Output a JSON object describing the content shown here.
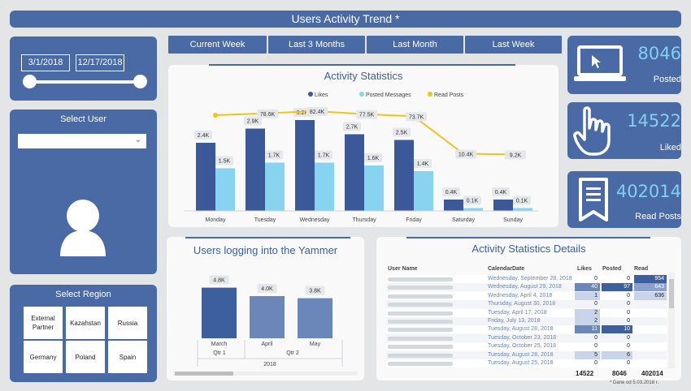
{
  "title": "Users Activity Trend *",
  "date_filter": {
    "start": "3/1/2018",
    "end": "12/17/2018"
  },
  "select_user": {
    "title": "Select User",
    "value": ""
  },
  "select_region": {
    "title": "Select Region",
    "options": [
      "External Partner",
      "Kazahstan",
      "Russia",
      "Germany",
      "Poland",
      "Spain"
    ]
  },
  "period_buttons": [
    "Current Week",
    "Last 3 Months",
    "Last Month",
    "Last Week"
  ],
  "kpis": [
    {
      "value": "8046",
      "label": "Posted",
      "icon": "laptop-icon"
    },
    {
      "value": "14522",
      "label": "Liked",
      "icon": "hand-pointer-icon"
    },
    {
      "value": "402014",
      "label": "Read Posts",
      "icon": "document-icon"
    }
  ],
  "colors": {
    "panel": "#4a6aa5",
    "likes": "#3b5998",
    "posted": "#87d3f0",
    "read": "#f2c31b",
    "kpi_number": "#7fd0f4"
  },
  "chart_data": [
    {
      "type": "bar",
      "title": "Activity Statistics",
      "categories": [
        "Monday",
        "Tuesday",
        "Wednesday",
        "Thursday",
        "Friday",
        "Saturday",
        "Sunday"
      ],
      "series": [
        {
          "name": "Likes",
          "type": "bar",
          "values": [
            2.4,
            2.9,
            3.2,
            2.7,
            2.5,
            0.4,
            0.4
          ],
          "labels": [
            "2.4K",
            "2.9K",
            "3.2K",
            "2.7K",
            "2.5K",
            "0.4K",
            "0.4K"
          ]
        },
        {
          "name": "Posted Messages",
          "type": "bar",
          "values": [
            1.5,
            1.7,
            1.7,
            1.6,
            1.4,
            0.1,
            0.1
          ],
          "labels": [
            "1.5K",
            "1.7K",
            "1.7K",
            "1.6K",
            "1.4K",
            "0.1K",
            "0.1K"
          ]
        },
        {
          "name": "Read Posts",
          "type": "line",
          "values": [
            null,
            78.6,
            82.4,
            77.5,
            73.7,
            10.4,
            9.2
          ],
          "labels": [
            "",
            "78.6K",
            "82.4K",
            "77.5K",
            "73.7K",
            "10.4K",
            "9.2K"
          ]
        }
      ],
      "legend": "top-center"
    },
    {
      "type": "bar",
      "title": "Users logging into the Yammer",
      "categories": [
        "March",
        "April",
        "May"
      ],
      "quarters": [
        "Qtr 1",
        "Qtr 2"
      ],
      "year": "2018",
      "values": [
        4.8,
        4.0,
        3.8
      ],
      "labels": [
        "4.8K",
        "4.0K",
        "3.8K"
      ]
    }
  ],
  "details_table": {
    "title": "Activity Statistics Details",
    "columns": [
      "User Name",
      "CalendarDate",
      "Likes",
      "Posted",
      "Read"
    ],
    "rows": [
      {
        "date": "Wednesday, September 28, 2018",
        "likes": "0",
        "posted": "0",
        "read": "954",
        "hl": 3
      },
      {
        "date": "Wednesday, August 29, 2018",
        "likes": "40",
        "posted": "97",
        "read": "643",
        "hl": 2
      },
      {
        "date": "Wednesday, April 4, 2018",
        "likes": "1",
        "posted": "0",
        "read": "636",
        "hl": 1
      },
      {
        "date": "Thursday, August 30, 2018",
        "likes": "0",
        "posted": "0",
        "read": "",
        "hl": 1
      },
      {
        "date": "Tuesday, April 17, 2018",
        "likes": "2",
        "posted": "0",
        "read": "",
        "hl": 0
      },
      {
        "date": "Friday, July 13, 2018",
        "likes": "2",
        "posted": "0",
        "read": "",
        "hl": 0
      },
      {
        "date": "Tuesday, August 28, 2018",
        "likes": "11",
        "posted": "10",
        "read": "",
        "hl": 0
      },
      {
        "date": "Tuesday, October 23, 2018",
        "likes": "0",
        "posted": "0",
        "read": "",
        "hl": 0
      },
      {
        "date": "Tuesday, October 25, 2018",
        "likes": "0",
        "posted": "0",
        "read": "",
        "hl": 0
      },
      {
        "date": "Tuesday, August 28, 2018",
        "likes": "5",
        "posted": "6",
        "read": "",
        "hl": 0
      },
      {
        "date": "Tuesday, August 25, 2018",
        "likes": "0",
        "posted": "0",
        "read": "",
        "hl": 0
      }
    ],
    "totals": {
      "likes": "14522",
      "posted": "8046",
      "read": "402014"
    },
    "footnote": "* Dane od 5.03.2018 r."
  }
}
